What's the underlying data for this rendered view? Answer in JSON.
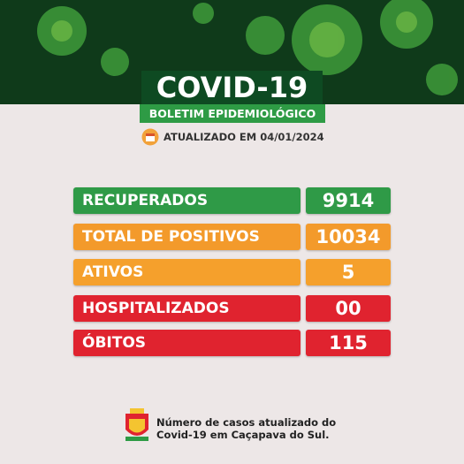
{
  "header": {
    "title": "COVID-19",
    "subtitle": "BOLETIM EPIDEMIOLÓGICO",
    "updated": "ATUALIZADO EM 04/01/2024"
  },
  "rows": [
    {
      "label": "RECUPERADOS",
      "value": "9914",
      "color": "#2f9a47"
    },
    {
      "label": "TOTAL DE POSITIVOS",
      "value": "10034",
      "color": "#f39a2b"
    },
    {
      "label": "ATIVOS",
      "value": "5",
      "color": "#f5a02c"
    },
    {
      "label": "HOSPITALIZADOS",
      "value": "00",
      "color": "#e0232f"
    },
    {
      "label": "ÓBITOS",
      "value": "115",
      "color": "#e0232f"
    }
  ],
  "footer": {
    "line1": "Número de casos atualizado do",
    "line2": "Covid-19 em Caçapava do Sul."
  }
}
